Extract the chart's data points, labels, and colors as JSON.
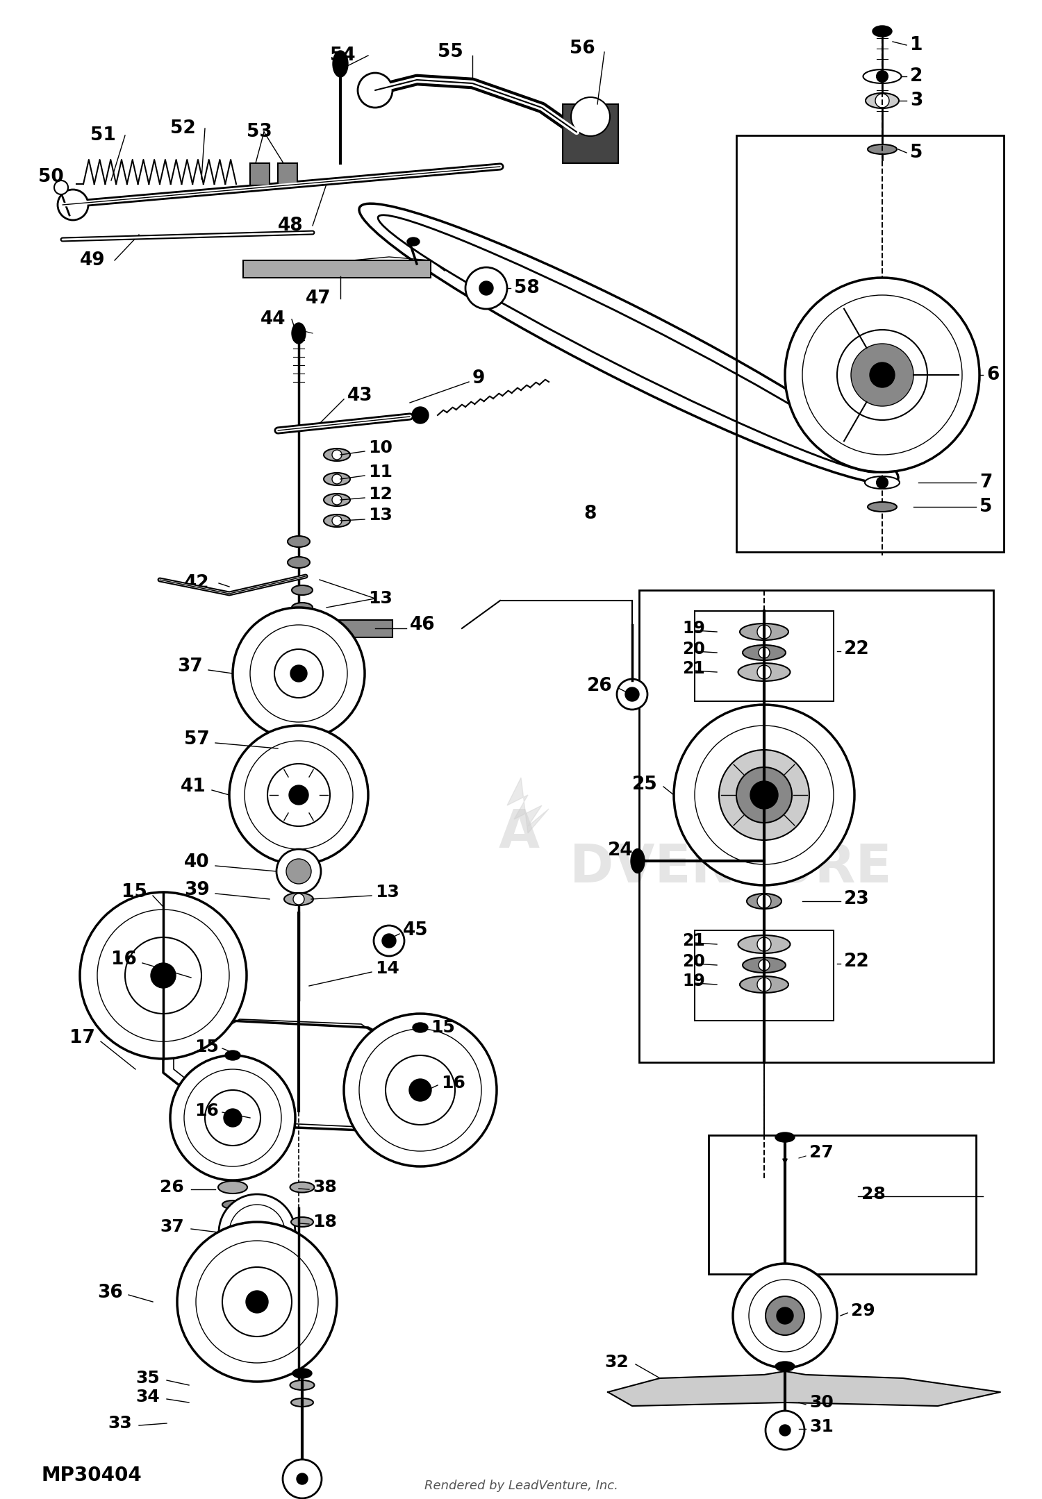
{
  "background_color": "#ffffff",
  "line_color": "#000000",
  "fig_width": 15.0,
  "fig_height": 21.59,
  "bottom_left_text": "MP30404",
  "bottom_center_text": "Rendered by LeadVenture, Inc."
}
